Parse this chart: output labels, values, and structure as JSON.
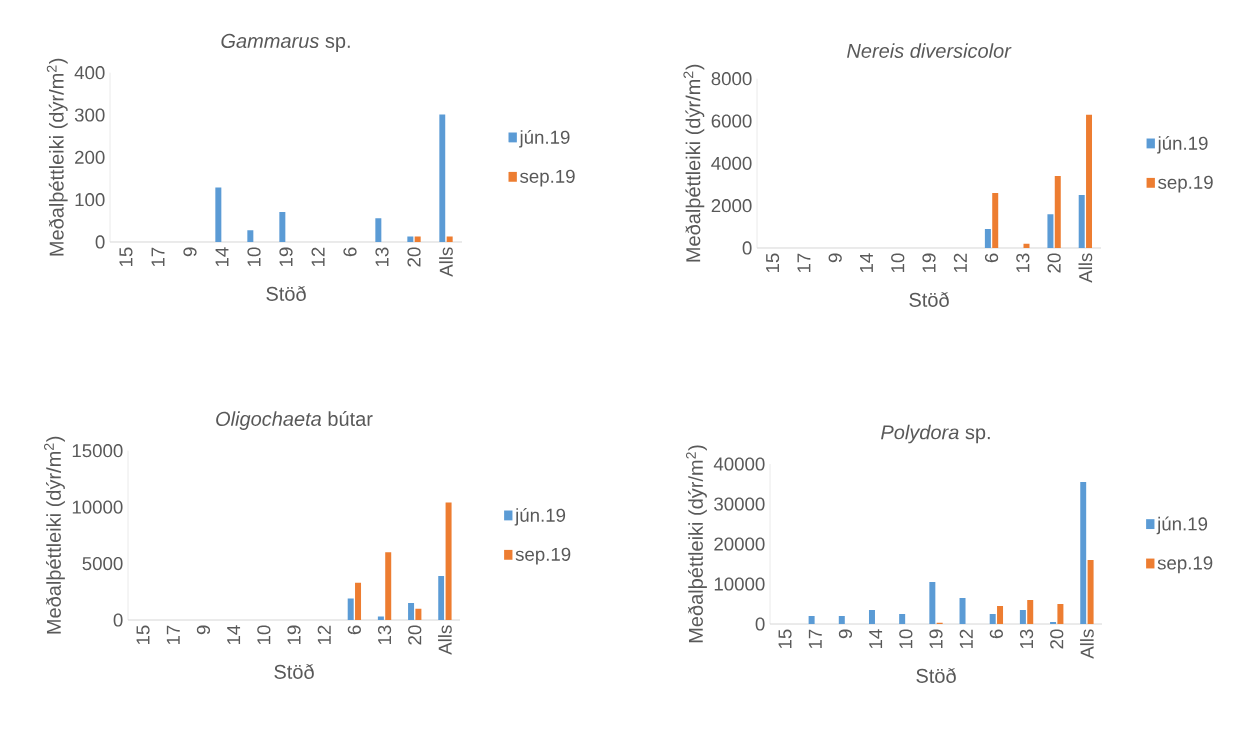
{
  "chart_data": [
    {
      "type": "bar",
      "title": "*Gammarus* sp.",
      "xlabel": "Stöð",
      "ylabel": "Meðalþéttleiki (dýr/m$^{2}$)",
      "categories": [
        "15",
        "17",
        "9",
        "14",
        "10",
        "19",
        "12",
        "6",
        "13",
        "20",
        "Alls"
      ],
      "legend": "right",
      "ylim": [
        0,
        400
      ],
      "yticks": [
        0,
        100,
        200,
        300,
        400
      ],
      "series": [
        {
          "name": "jún.19",
          "color": "#5b9bd5",
          "values": [
            0,
            0,
            0,
            129,
            28,
            71,
            0,
            0,
            56,
            13,
            301
          ]
        },
        {
          "name": "sep.19",
          "color": "#ed7d31",
          "values": [
            0,
            0,
            0,
            0,
            0,
            0,
            0,
            0,
            0,
            13,
            13
          ]
        }
      ]
    },
    {
      "type": "bar",
      "title": "*Nereis diversicolor*",
      "xlabel": "Stöð",
      "ylabel": "Meðalþéttleiki (dýr/m$^{2}$)",
      "categories": [
        "15",
        "17",
        "9",
        "14",
        "10",
        "19",
        "12",
        "6",
        "13",
        "20",
        "Alls"
      ],
      "legend": "right",
      "ylim": [
        0,
        8000
      ],
      "yticks": [
        0,
        2000,
        4000,
        6000,
        8000
      ],
      "series": [
        {
          "name": "jún.19",
          "color": "#5b9bd5",
          "values": [
            0,
            0,
            0,
            0,
            0,
            0,
            0,
            900,
            0,
            1600,
            2500
          ]
        },
        {
          "name": "sep.19",
          "color": "#ed7d31",
          "values": [
            0,
            0,
            0,
            0,
            0,
            0,
            0,
            2600,
            200,
            3400,
            6300
          ]
        }
      ]
    },
    {
      "type": "bar",
      "title": "*Oligochaeta* bútar",
      "xlabel": "Stöð",
      "ylabel": "Meðalþéttleiki (dýr/m$^{2}$)",
      "categories": [
        "15",
        "17",
        "9",
        "14",
        "10",
        "19",
        "12",
        "6",
        "13",
        "20",
        "Alls"
      ],
      "legend": "right",
      "ylim": [
        0,
        15000
      ],
      "yticks": [
        0,
        5000,
        10000,
        15000
      ],
      "series": [
        {
          "name": "jún.19",
          "color": "#5b9bd5",
          "values": [
            0,
            0,
            0,
            0,
            0,
            0,
            0,
            1900,
            300,
            1500,
            3900
          ]
        },
        {
          "name": "sep.19",
          "color": "#ed7d31",
          "values": [
            0,
            0,
            0,
            0,
            0,
            0,
            0,
            3300,
            6000,
            1000,
            10400
          ]
        }
      ]
    },
    {
      "type": "bar",
      "title": "*Polydora* sp.",
      "xlabel": "Stöð",
      "ylabel": "Meðalþéttleiki (dýr/m$^{2}$)",
      "categories": [
        "15",
        "17",
        "9",
        "14",
        "10",
        "19",
        "12",
        "6",
        "13",
        "20",
        "Alls"
      ],
      "legend": "right",
      "ylim": [
        0,
        40000
      ],
      "yticks": [
        0,
        10000,
        20000,
        30000,
        40000
      ],
      "series": [
        {
          "name": "jún.19",
          "color": "#5b9bd5",
          "values": [
            0,
            2000,
            2000,
            3500,
            2500,
            10500,
            6500,
            2500,
            3500,
            500,
            35500
          ]
        },
        {
          "name": "sep.19",
          "color": "#ed7d31",
          "values": [
            0,
            0,
            0,
            0,
            0,
            300,
            0,
            4500,
            6000,
            5000,
            16000
          ]
        }
      ]
    }
  ]
}
